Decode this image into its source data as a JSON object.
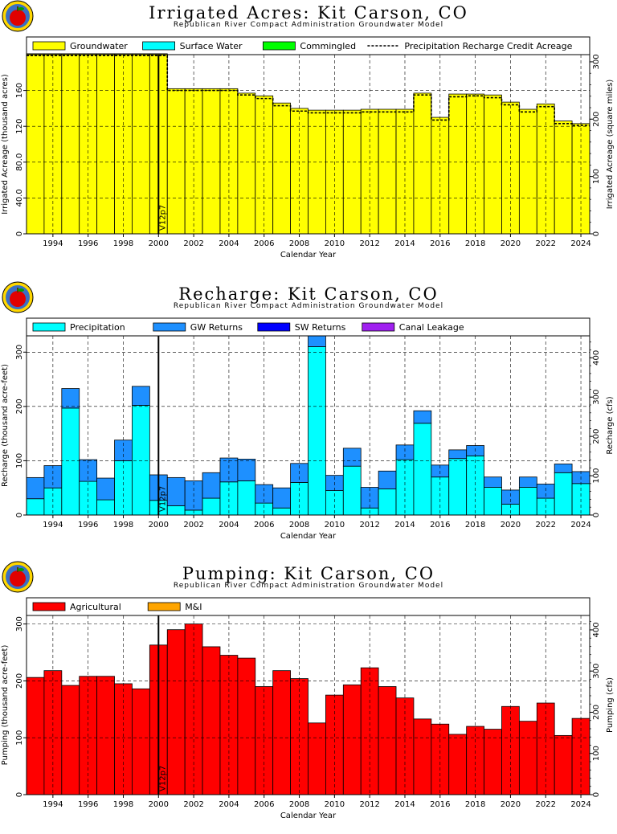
{
  "chart_data": [
    {
      "type": "bar",
      "title": "Irrigated Acres: Kit Carson, CO",
      "subtitle": "Republican River Compact Administration Groundwater Model",
      "xlabel": "Calendar Year",
      "ylabel": "Irrigated Acreage (thousand acres)",
      "y2label": "Irrigated Acreage (square miles)",
      "xlim": [
        1993,
        2025
      ],
      "ylim": [
        0,
        200
      ],
      "y2lim": [
        0,
        312.5
      ],
      "yticks": [
        "0",
        "40.0",
        "80.0",
        "120",
        "160"
      ],
      "y2ticks": [
        "0",
        "100",
        "200",
        "300"
      ],
      "xticks": [
        "1994",
        "1996",
        "1998",
        "2000",
        "2002",
        "2004",
        "2006",
        "2008",
        "2010",
        "2012",
        "2014",
        "2016",
        "2018",
        "2020",
        "2022",
        "2024"
      ],
      "grid": true,
      "legend_position": "top",
      "marker_label": "V12p7",
      "marker_x": 2000.5,
      "stacked": true,
      "categories": [
        1993,
        1994,
        1995,
        1996,
        1997,
        1998,
        1999,
        2000,
        2001,
        2002,
        2003,
        2004,
        2005,
        2006,
        2007,
        2008,
        2009,
        2010,
        2011,
        2012,
        2013,
        2014,
        2015,
        2016,
        2017,
        2018,
        2019,
        2020,
        2021,
        2022,
        2023,
        2024
      ],
      "series": [
        {
          "name": "Groundwater",
          "color": "#ffff00",
          "values": [
            201,
            201,
            201,
            201,
            201,
            201,
            201,
            201,
            162,
            162,
            162,
            162,
            157,
            154,
            146,
            140,
            138,
            138,
            138,
            139,
            139,
            139,
            157,
            130,
            156,
            156,
            155,
            147,
            139,
            145,
            126,
            123
          ]
        },
        {
          "name": "Surface Water",
          "color": "#00ffff",
          "values": [
            0,
            0,
            0,
            0,
            0,
            0,
            0,
            0,
            0,
            0,
            0,
            0,
            0,
            0,
            0,
            0,
            0,
            0,
            0,
            0,
            0,
            0,
            0,
            0,
            0,
            0,
            0,
            0,
            0,
            0,
            0,
            0
          ]
        },
        {
          "name": "Commingled",
          "color": "#00ff00",
          "values": [
            0,
            0,
            0,
            0,
            0,
            0,
            0,
            0,
            0,
            0,
            0,
            0,
            0,
            0,
            0,
            0,
            0,
            0,
            0,
            0,
            0,
            0,
            0,
            0,
            0,
            0,
            0,
            0,
            0,
            0,
            0,
            0
          ]
        }
      ],
      "line_series": {
        "name": "Precipitation Recharge Credit Acreage",
        "style": "dashed",
        "values": [
          199,
          199,
          199,
          199,
          199,
          199,
          199,
          199,
          160,
          160,
          160,
          160,
          155,
          151,
          143,
          137,
          135,
          135,
          135,
          136,
          136,
          136,
          155,
          127,
          153,
          154,
          152,
          144,
          136,
          142,
          123,
          121
        ]
      }
    },
    {
      "type": "bar",
      "title": "Recharge: Kit Carson, CO",
      "subtitle": "Republican River Compact Administration Groundwater Model",
      "xlabel": "Calendar Year",
      "ylabel": "Recharge (thousand acre-feet)",
      "y2label": "Recharge (cfs)",
      "xlim": [
        1993,
        2025
      ],
      "ylim": [
        0,
        330
      ],
      "y2lim": [
        0,
        455.8
      ],
      "yticks": [
        "0",
        "100",
        "200",
        "300"
      ],
      "y2ticks": [
        "0",
        "100",
        "200",
        "300",
        "400"
      ],
      "xticks": [
        "1994",
        "1996",
        "1998",
        "2000",
        "2002",
        "2004",
        "2006",
        "2008",
        "2010",
        "2012",
        "2014",
        "2016",
        "2018",
        "2020",
        "2022",
        "2024"
      ],
      "grid": true,
      "legend_position": "top",
      "marker_label": "V12p7",
      "marker_x": 2000.5,
      "stacked": true,
      "categories": [
        1993,
        1994,
        1995,
        1996,
        1997,
        1998,
        1999,
        2000,
        2001,
        2002,
        2003,
        2004,
        2005,
        2006,
        2007,
        2008,
        2009,
        2010,
        2011,
        2012,
        2013,
        2014,
        2015,
        2016,
        2017,
        2018,
        2019,
        2020,
        2021,
        2022,
        2023,
        2024
      ],
      "series": [
        {
          "name": "Precipitation",
          "color": "#00ffff",
          "values": [
            30,
            50,
            197,
            62,
            28,
            100,
            202,
            27,
            17,
            9,
            31,
            61,
            63,
            22,
            13,
            60,
            310,
            45,
            90,
            13,
            48,
            102,
            169,
            70,
            104,
            109,
            51,
            20,
            51,
            31,
            78,
            58
          ]
        },
        {
          "name": "GW Returns",
          "color": "#1e90ff",
          "values": [
            39,
            41,
            36,
            40,
            40,
            38,
            35,
            47,
            52,
            54,
            47,
            44,
            40,
            34,
            37,
            35,
            20,
            28,
            33,
            38,
            33,
            27,
            23,
            22,
            16,
            19,
            19,
            26,
            19,
            26,
            16,
            22
          ]
        },
        {
          "name": "SW Returns",
          "color": "#0000ff",
          "values": [
            0,
            0,
            0,
            0,
            0,
            0,
            0,
            0,
            0,
            0,
            0,
            0,
            0,
            0,
            0,
            0,
            0,
            0,
            0,
            0,
            0,
            0,
            0,
            0,
            0,
            0,
            0,
            0,
            0,
            0,
            0,
            0
          ]
        },
        {
          "name": "Canal Leakage",
          "color": "#a020f0",
          "values": [
            0,
            0,
            0,
            0,
            0,
            0,
            0,
            0,
            0,
            0,
            0,
            0,
            0,
            0,
            0,
            0,
            0,
            0,
            0,
            0,
            0,
            0,
            0,
            0,
            0,
            0,
            0,
            0,
            0,
            0,
            0,
            0
          ]
        }
      ]
    },
    {
      "type": "bar",
      "title": "Pumping: Kit Carson, CO",
      "subtitle": "Republican River Compact Administration Groundwater Model",
      "xlabel": "Calendar Year",
      "ylabel": "Pumping (thousand acre-feet)",
      "y2label": "Pumping (cfs)",
      "xlim": [
        1993,
        2025
      ],
      "ylim": [
        0,
        315
      ],
      "y2lim": [
        0,
        435
      ],
      "yticks": [
        "0",
        "100",
        "200",
        "300"
      ],
      "y2ticks": [
        "0",
        "100",
        "200",
        "300",
        "400"
      ],
      "xticks": [
        "1994",
        "1996",
        "1998",
        "2000",
        "2002",
        "2004",
        "2006",
        "2008",
        "2010",
        "2012",
        "2014",
        "2016",
        "2018",
        "2020",
        "2022",
        "2024"
      ],
      "grid": true,
      "legend_position": "top",
      "marker_label": "V12p7",
      "marker_x": 2000.5,
      "stacked": true,
      "categories": [
        1993,
        1994,
        1995,
        1996,
        1997,
        1998,
        1999,
        2000,
        2001,
        2002,
        2003,
        2004,
        2005,
        2006,
        2007,
        2008,
        2009,
        2010,
        2011,
        2012,
        2013,
        2014,
        2015,
        2016,
        2017,
        2018,
        2019,
        2020,
        2021,
        2022,
        2023,
        2024
      ],
      "series": [
        {
          "name": "Agricultural",
          "color": "#ff0000",
          "values": [
            206,
            218,
            192,
            208,
            208,
            195,
            186,
            263,
            290,
            300,
            260,
            245,
            240,
            190,
            218,
            204,
            126,
            175,
            193,
            223,
            190,
            170,
            133,
            124,
            106,
            120,
            115,
            155,
            129,
            161,
            104,
            134
          ]
        },
        {
          "name": "M&I",
          "color": "#ffa500",
          "values": [
            0,
            0,
            0,
            0,
            0,
            0,
            0,
            0,
            0,
            0,
            0,
            0,
            0,
            0,
            0,
            0,
            0,
            0,
            0,
            0,
            0,
            0,
            0,
            0,
            0,
            0,
            0,
            0,
            0,
            0,
            0,
            0
          ]
        }
      ]
    }
  ]
}
